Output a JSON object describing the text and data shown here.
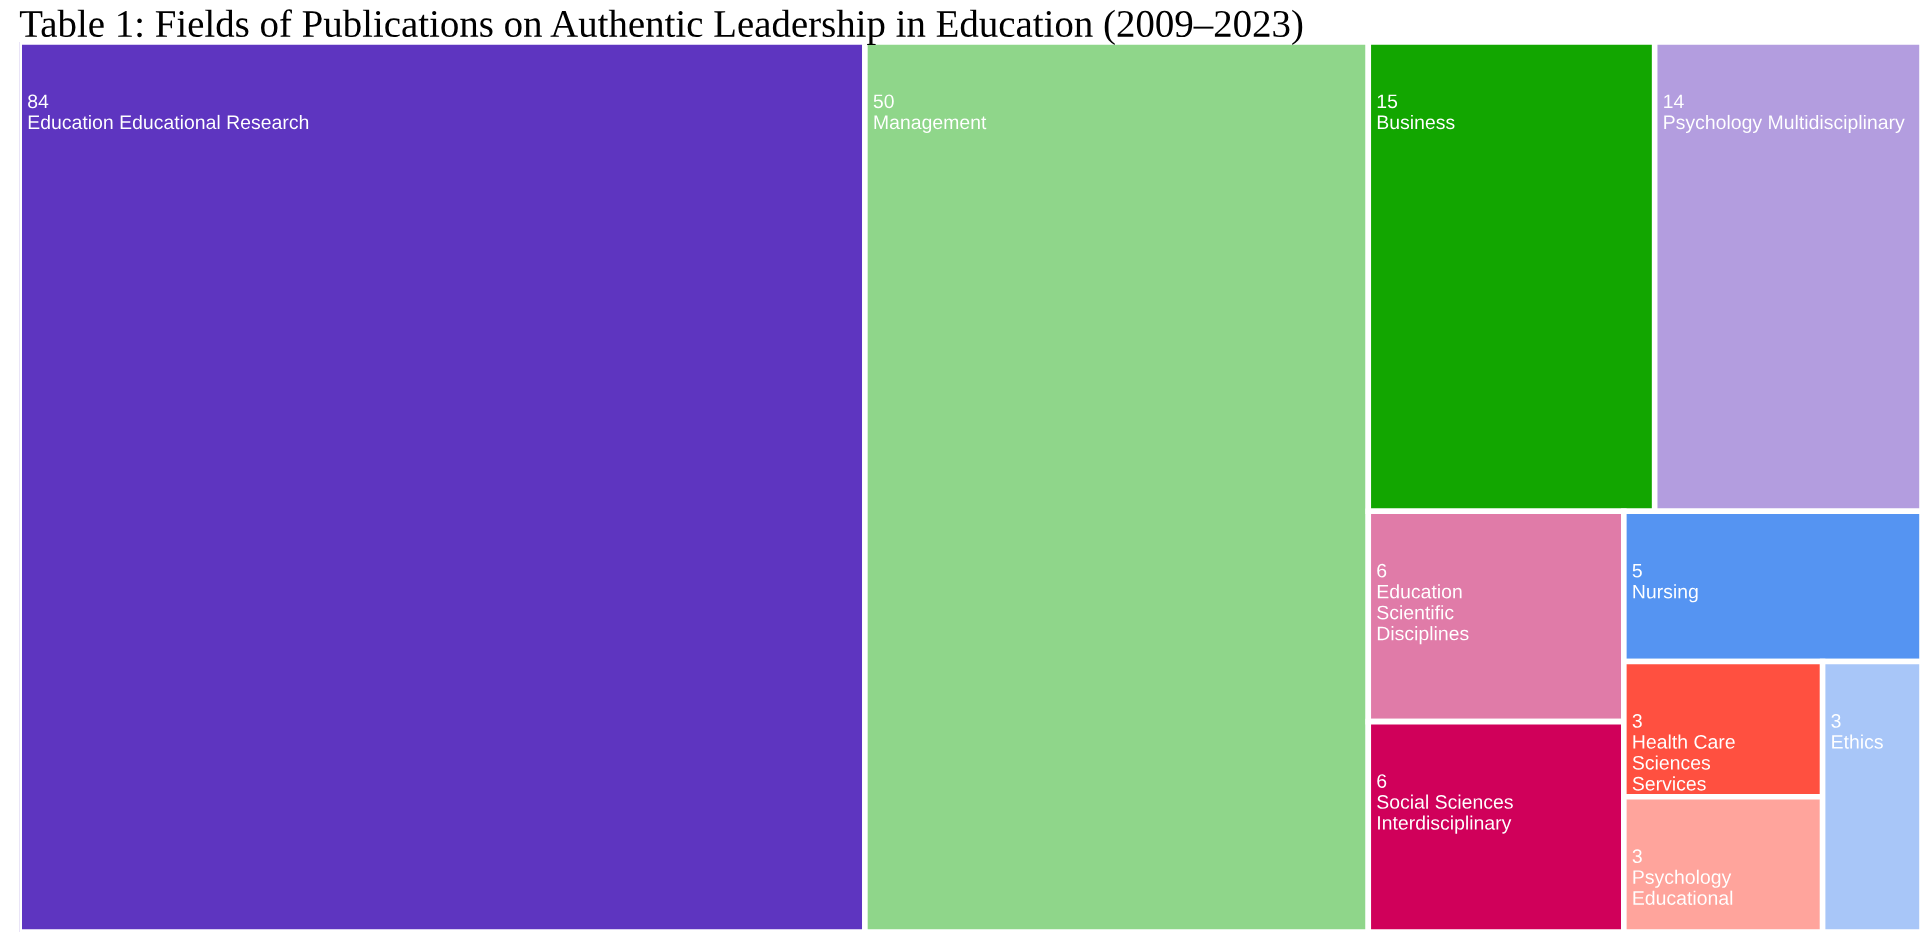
{
  "chart_data": {
    "type": "other",
    "title": "Table 1: Fields of Publications on Authentic Leadership in Education (2009–2023)",
    "categories": [
      "Education Educational Research",
      "Management",
      "Business",
      "Psychology Multidisciplinary",
      "Education\nScientific\nDisciplines",
      "Social Sciences\nInterdisciplinary",
      "Nursing",
      "Health Care\nSciences\nServices",
      "Psychology\nEducational",
      "Ethics"
    ],
    "values": [
      84,
      50,
      15,
      14,
      6,
      6,
      5,
      3,
      3,
      3
    ],
    "colors": [
      "#5e35c0",
      "#8fd68a",
      "#12a600",
      "#b39ddf",
      "#e07ba8",
      "#d0005a",
      "#5594f2",
      "#ff5040",
      "#ffa49c",
      "#a8c6f8"
    ],
    "data_labels": true
  }
}
